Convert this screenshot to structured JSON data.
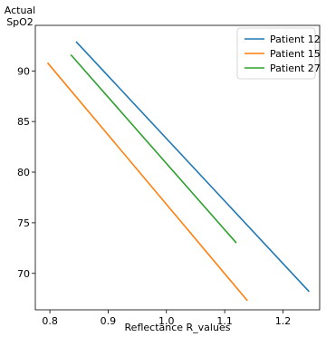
{
  "chart_data": {
    "type": "line",
    "xlabel": "Reflectance R_values",
    "ylabel_lines": [
      "Actual",
      "SpO2"
    ],
    "xlim": [
      0.775,
      1.263
    ],
    "ylim": [
      66.4,
      94.5
    ],
    "x_ticks": [
      0.8,
      0.9,
      1.0,
      1.1,
      1.2
    ],
    "x_tick_labels": [
      "0.8",
      "0.9",
      "1.0",
      "1.1",
      "1.2"
    ],
    "y_ticks": [
      70,
      75,
      80,
      85,
      90
    ],
    "y_tick_labels": [
      "70",
      "75",
      "80",
      "85",
      "90"
    ],
    "grid": false,
    "legend_position": "top-right",
    "series": [
      {
        "name": "Patient 12",
        "color": "#1f77b4",
        "x": [
          0.845,
          1.245
        ],
        "y": [
          92.9,
          68.2
        ]
      },
      {
        "name": "Patient 15",
        "color": "#ff7f0e",
        "x": [
          0.796,
          1.139
        ],
        "y": [
          90.8,
          67.3
        ]
      },
      {
        "name": "Patient 27",
        "color": "#2ca02c",
        "x": [
          0.836,
          1.12
        ],
        "y": [
          91.6,
          73.0
        ]
      }
    ]
  }
}
